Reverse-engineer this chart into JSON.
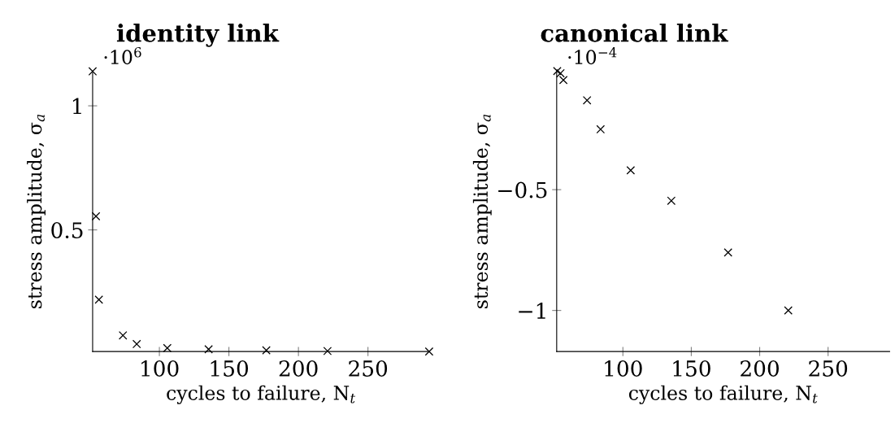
{
  "chart_data": [
    {
      "type": "scatter",
      "title": "identity link",
      "xlabel": "cycles to failure, N$_{t}$",
      "ylabel": "stress amplitude, σ$_{a}$",
      "annotations": [
        "·10$^{6}$"
      ],
      "marker": "cross",
      "grid": false,
      "legend": false,
      "x": [
        52,
        54.4,
        56.5,
        73.8,
        83.7,
        105.7,
        135.4,
        176.9,
        220.9,
        294
      ],
      "series": [
        {
          "color": "#000000",
          "values": [
            1.139,
            0.555,
            0.219,
            0.075,
            0.04,
            0.024,
            0.019,
            0.015,
            0.012,
            0.01
          ]
        }
      ],
      "xlim": [
        52,
        294
      ],
      "ylim": [
        0.01,
        1.14
      ],
      "xticks": [
        100,
        150,
        200,
        250
      ],
      "yticks": [
        0.5,
        1
      ]
    },
    {
      "type": "scatter",
      "title": "canonical link",
      "xlabel": "cycles to failure, N$_{t}$",
      "ylabel": "stress amplitude, σ$_{a}$",
      "annotations": [
        "·10$^{−4}$"
      ],
      "marker": "cross",
      "grid": false,
      "legend": false,
      "x": [
        52,
        54.4,
        56.5,
        73.8,
        83.7,
        105.7,
        135.4,
        176.9,
        220.9
      ],
      "series": [
        {
          "color": "#000000",
          "values": [
            -0.009,
            -0.018,
            -0.046,
            -0.13,
            -0.25,
            -0.42,
            -0.546,
            -0.76,
            -1.0
          ]
        }
      ],
      "xlim": [
        51.6,
        295
      ],
      "ylim": [
        -1.17,
        -0.009
      ],
      "xticks": [
        100,
        150,
        200,
        250
      ],
      "yticks": [
        {
          "value": -1,
          "label": "−1"
        },
        {
          "value": -0.5,
          "label": "−0.5"
        }
      ]
    }
  ]
}
